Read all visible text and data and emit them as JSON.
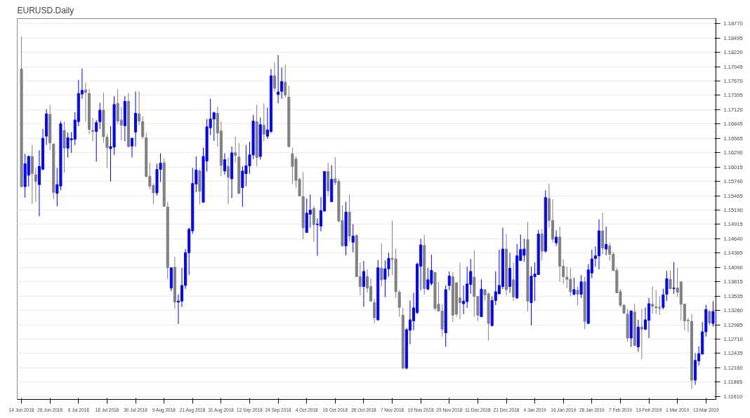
{
  "chart_data": {
    "type": "candlestick",
    "title": "EURUSD.Daily",
    "categories": [
      "14 Jun 2018",
      null,
      null,
      null,
      null,
      null,
      null,
      null,
      "26 Jun 2018",
      null,
      null,
      null,
      null,
      null,
      null,
      null,
      "6 Jul 2018",
      null,
      null,
      null,
      null,
      null,
      null,
      null,
      "18 Jul 2018",
      null,
      null,
      null,
      null,
      null,
      null,
      null,
      "30 Jul 2018",
      null,
      null,
      null,
      null,
      null,
      null,
      null,
      "9 Aug 2018",
      null,
      null,
      null,
      null,
      null,
      null,
      null,
      "21 Aug 2018",
      null,
      null,
      null,
      null,
      null,
      null,
      null,
      "31 Aug 2018",
      null,
      null,
      null,
      null,
      null,
      null,
      null,
      "12 Sep 2018",
      null,
      null,
      null,
      null,
      null,
      null,
      null,
      "24 Sep 2018",
      null,
      null,
      null,
      null,
      null,
      null,
      null,
      "4 Oct 2018",
      null,
      null,
      null,
      null,
      null,
      null,
      null,
      "16 Oct 2018",
      null,
      null,
      null,
      null,
      null,
      null,
      null,
      "26 Oct 2018",
      null,
      null,
      null,
      null,
      null,
      null,
      null,
      "7 Nov 2018",
      null,
      null,
      null,
      null,
      null,
      null,
      null,
      "19 Nov 2018",
      null,
      null,
      null,
      null,
      null,
      null,
      null,
      "29 Nov 2018",
      null,
      null,
      null,
      null,
      null,
      null,
      null,
      "11 Dec 2018",
      null,
      null,
      null,
      null,
      null,
      null,
      null,
      "21 Dec 2018",
      null,
      null,
      null,
      null,
      null,
      null,
      null,
      "4 Jan 2019",
      null,
      null,
      null,
      null,
      null,
      null,
      null,
      "16 Jan 2019",
      null,
      null,
      null,
      null,
      null,
      null,
      null,
      "28 Jan 2019",
      null,
      null,
      null,
      null,
      null,
      null,
      null,
      "7 Feb 2019",
      null,
      null,
      null,
      null,
      null,
      null,
      null,
      "19 Feb 2019",
      null,
      null,
      null,
      null,
      null,
      null,
      null,
      "1 Mar 2019",
      null,
      null,
      null,
      null,
      null,
      null,
      null,
      "13 Mar 2019",
      null,
      null
    ],
    "ohlc": [
      [
        1.179,
        1.1853,
        1.1562,
        1.1564
      ],
      [
        1.1564,
        1.1627,
        1.1543,
        1.1608
      ],
      [
        1.1586,
        1.1624,
        1.1564,
        1.1622
      ],
      [
        1.1622,
        1.1644,
        1.1531,
        1.1589
      ],
      [
        1.1587,
        1.16,
        1.1535,
        1.1574
      ],
      [
        1.1568,
        1.1634,
        1.1507,
        1.1603
      ],
      [
        1.1597,
        1.1675,
        1.1597,
        1.1657
      ],
      [
        1.1661,
        1.1713,
        1.1644,
        1.1704
      ],
      [
        1.1703,
        1.1721,
        1.1634,
        1.1648
      ],
      [
        1.1646,
        1.1646,
        1.154,
        1.1553
      ],
      [
        1.1551,
        1.16,
        1.1526,
        1.1568
      ],
      [
        1.1565,
        1.169,
        1.1557,
        1.1685
      ],
      [
        1.1672,
        1.1689,
        1.1591,
        1.1638
      ],
      [
        1.1638,
        1.1668,
        1.162,
        1.1658
      ],
      [
        1.1654,
        1.1669,
        1.1629,
        1.1656
      ],
      [
        1.1655,
        1.1707,
        1.1644,
        1.1692
      ],
      [
        1.1689,
        1.1769,
        1.168,
        1.1743
      ],
      [
        1.1742,
        1.1791,
        1.1733,
        1.1749
      ],
      [
        1.175,
        1.1764,
        1.1689,
        1.1745
      ],
      [
        1.1743,
        1.1752,
        1.1665,
        1.1674
      ],
      [
        1.1672,
        1.1696,
        1.1651,
        1.167
      ],
      [
        1.167,
        1.1692,
        1.1612,
        1.1687
      ],
      [
        1.1689,
        1.1725,
        1.1675,
        1.1711
      ],
      [
        1.1711,
        1.1745,
        1.1648,
        1.166
      ],
      [
        1.1659,
        1.1665,
        1.16,
        1.1639
      ],
      [
        1.1637,
        1.168,
        1.1574,
        1.1641
      ],
      [
        1.164,
        1.1738,
        1.1625,
        1.1722
      ],
      [
        1.1724,
        1.1752,
        1.1684,
        1.169
      ],
      [
        1.1692,
        1.1717,
        1.1653,
        1.1682
      ],
      [
        1.1681,
        1.1738,
        1.1651,
        1.1728
      ],
      [
        1.1728,
        1.1744,
        1.1639,
        1.1641
      ],
      [
        1.1642,
        1.1658,
        1.162,
        1.1657
      ],
      [
        1.1669,
        1.1747,
        1.1641,
        1.1705
      ],
      [
        1.1704,
        1.1747,
        1.1682,
        1.169
      ],
      [
        1.1689,
        1.1699,
        1.1656,
        1.166
      ],
      [
        1.1658,
        1.1668,
        1.1581,
        1.1584
      ],
      [
        1.1584,
        1.161,
        1.1559,
        1.1565
      ],
      [
        1.1566,
        1.157,
        1.153,
        1.1552
      ],
      [
        1.1552,
        1.1608,
        1.1547,
        1.1597
      ],
      [
        1.1597,
        1.1628,
        1.1573,
        1.1609
      ],
      [
        1.161,
        1.1618,
        1.1526,
        1.1526
      ],
      [
        1.1525,
        1.1535,
        1.1386,
        1.1408
      ],
      [
        1.1369,
        1.1408,
        1.1363,
        1.1408
      ],
      [
        1.1409,
        1.1429,
        1.1329,
        1.1342
      ],
      [
        1.1342,
        1.1357,
        1.13,
        1.1344
      ],
      [
        1.1344,
        1.1408,
        1.1333,
        1.1374
      ],
      [
        1.1374,
        1.1444,
        1.1367,
        1.1437
      ],
      [
        1.1437,
        1.1485,
        1.1394,
        1.1482
      ],
      [
        1.1479,
        1.16,
        1.1473,
        1.157
      ],
      [
        1.1569,
        1.1622,
        1.1553,
        1.1596
      ],
      [
        1.1594,
        1.1598,
        1.153,
        1.1555
      ],
      [
        1.1534,
        1.1639,
        1.1534,
        1.1622
      ],
      [
        1.1613,
        1.1694,
        1.1593,
        1.1679
      ],
      [
        1.1677,
        1.1733,
        1.1663,
        1.1694
      ],
      [
        1.1694,
        1.1708,
        1.1652,
        1.1706
      ],
      [
        1.1705,
        1.1718,
        1.1641,
        1.1667
      ],
      [
        1.1671,
        1.1689,
        1.1584,
        1.1605
      ],
      [
        1.1594,
        1.1628,
        1.1587,
        1.1616
      ],
      [
        1.1603,
        1.162,
        1.153,
        1.1582
      ],
      [
        1.1579,
        1.1641,
        1.1542,
        1.1629
      ],
      [
        1.1629,
        1.166,
        1.161,
        1.1624
      ],
      [
        1.1621,
        1.1648,
        1.155,
        1.1551
      ],
      [
        1.1562,
        1.1603,
        1.1525,
        1.1594
      ],
      [
        1.1589,
        1.1644,
        1.1565,
        1.1604
      ],
      [
        1.1604,
        1.165,
        1.1589,
        1.1625
      ],
      [
        1.1625,
        1.1702,
        1.1617,
        1.169
      ],
      [
        1.1689,
        1.1721,
        1.1603,
        1.162
      ],
      [
        1.1622,
        1.1697,
        1.1616,
        1.1683
      ],
      [
        1.1682,
        1.1724,
        1.1651,
        1.1665
      ],
      [
        1.1661,
        1.1716,
        1.1656,
        1.1673
      ],
      [
        1.167,
        1.179,
        1.1667,
        1.1777
      ],
      [
        1.1777,
        1.1803,
        1.1747,
        1.1753
      ],
      [
        1.1741,
        1.1817,
        1.1724,
        1.1746
      ],
      [
        1.1747,
        1.1793,
        1.1733,
        1.1766
      ],
      [
        1.1765,
        1.1799,
        1.1735,
        1.174
      ],
      [
        1.1736,
        1.1758,
        1.1639,
        1.1641
      ],
      [
        1.1627,
        1.1639,
        1.1569,
        1.1603
      ],
      [
        1.1617,
        1.1622,
        1.1562,
        1.1576
      ],
      [
        1.1578,
        1.1581,
        1.1545,
        1.1546
      ],
      [
        1.1545,
        1.1592,
        1.1463,
        1.1485
      ],
      [
        1.1476,
        1.1541,
        1.1475,
        1.1513
      ],
      [
        1.1511,
        1.1549,
        1.1485,
        1.1519
      ],
      [
        1.1522,
        1.1527,
        1.1458,
        1.1491
      ],
      [
        1.1491,
        1.1503,
        1.1431,
        1.1492
      ],
      [
        1.1488,
        1.1544,
        1.1478,
        1.1518
      ],
      [
        1.1517,
        1.1594,
        1.1516,
        1.1593
      ],
      [
        1.1593,
        1.161,
        1.1546,
        1.1556
      ],
      [
        1.1535,
        1.1605,
        1.1534,
        1.1578
      ],
      [
        1.1579,
        1.1621,
        1.1567,
        1.1572
      ],
      [
        1.1574,
        1.1579,
        1.1495,
        1.1498
      ],
      [
        1.1499,
        1.1528,
        1.1449,
        1.145
      ],
      [
        1.145,
        1.1535,
        1.1432,
        1.1515
      ],
      [
        1.1515,
        1.1549,
        1.1458,
        1.1469
      ],
      [
        1.1457,
        1.1492,
        1.1438,
        1.1469
      ],
      [
        1.147,
        1.1473,
        1.1391,
        1.1391
      ],
      [
        1.1391,
        1.1418,
        1.1355,
        1.1372
      ],
      [
        1.1372,
        1.1421,
        1.1333,
        1.1401
      ],
      [
        1.1391,
        1.1405,
        1.136,
        1.1369
      ],
      [
        1.1372,
        1.1388,
        1.1344,
        1.1344
      ],
      [
        1.1341,
        1.1348,
        1.1301,
        1.1312
      ],
      [
        1.1308,
        1.1423,
        1.1306,
        1.1408
      ],
      [
        1.1407,
        1.1455,
        1.1372,
        1.1385
      ],
      [
        1.1386,
        1.1422,
        1.1352,
        1.1406
      ],
      [
        1.1406,
        1.1437,
        1.1391,
        1.1426
      ],
      [
        1.1426,
        1.1499,
        1.1394,
        1.1424
      ],
      [
        1.1425,
        1.1445,
        1.135,
        1.1362
      ],
      [
        1.1361,
        1.1365,
        1.1314,
        1.1332
      ],
      [
        1.1317,
        1.1331,
        1.1213,
        1.1215
      ],
      [
        1.1215,
        1.1292,
        1.1213,
        1.1289
      ],
      [
        1.1288,
        1.1345,
        1.1261,
        1.1308
      ],
      [
        1.1306,
        1.136,
        1.1288,
        1.1331
      ],
      [
        1.1322,
        1.1418,
        1.1319,
        1.1415
      ],
      [
        1.1411,
        1.1464,
        1.1365,
        1.1452
      ],
      [
        1.1451,
        1.1471,
        1.1357,
        1.1368
      ],
      [
        1.1367,
        1.1408,
        1.1365,
        1.1385
      ],
      [
        1.1378,
        1.1433,
        1.1374,
        1.1403
      ],
      [
        1.1399,
        1.14,
        1.1326,
        1.133
      ],
      [
        1.1338,
        1.1381,
        1.1324,
        1.1325
      ],
      [
        1.1325,
        1.1338,
        1.1276,
        1.129
      ],
      [
        1.1283,
        1.1374,
        1.1256,
        1.1366
      ],
      [
        1.1374,
        1.1401,
        1.1365,
        1.1392
      ],
      [
        1.1391,
        1.14,
        1.1304,
        1.1317
      ],
      [
        1.1379,
        1.1381,
        1.1314,
        1.1319
      ],
      [
        1.135,
        1.1418,
        1.1309,
        1.1341
      ],
      [
        1.1339,
        1.1374,
        1.1319,
        1.1344
      ],
      [
        1.1343,
        1.141,
        1.1331,
        1.1377
      ],
      [
        1.1376,
        1.1425,
        1.1358,
        1.1401
      ],
      [
        1.139,
        1.1442,
        1.1314,
        1.1353
      ],
      [
        1.1353,
        1.1353,
        1.1305,
        1.1317
      ],
      [
        1.1314,
        1.1386,
        1.1314,
        1.1367
      ],
      [
        1.1366,
        1.1367,
        1.1345,
        1.1356
      ],
      [
        1.1358,
        1.136,
        1.1268,
        1.1301
      ],
      [
        1.1297,
        1.1353,
        1.1295,
        1.1345
      ],
      [
        1.1345,
        1.1401,
        1.1336,
        1.1362
      ],
      [
        1.1358,
        1.1443,
        1.1357,
        1.1374
      ],
      [
        1.1372,
        1.1485,
        1.1367,
        1.1444
      ],
      [
        1.1444,
        1.1473,
        1.1355,
        1.1366
      ],
      [
        1.1372,
        1.1437,
        1.136,
        1.1407
      ],
      [
        1.1385,
        1.1418,
        1.1344,
        1.1352
      ],
      [
        1.135,
        1.1454,
        1.1348,
        1.1431
      ],
      [
        1.1422,
        1.1472,
        1.1422,
        1.1443
      ],
      [
        1.1432,
        1.1464,
        1.142,
        1.1444
      ],
      [
        1.1462,
        1.1496,
        1.1324,
        1.1344
      ],
      [
        1.1341,
        1.141,
        1.1297,
        1.1392
      ],
      [
        1.1391,
        1.1418,
        1.1344,
        1.1396
      ],
      [
        1.1395,
        1.1481,
        1.1394,
        1.1473
      ],
      [
        1.1473,
        1.1483,
        1.1422,
        1.144
      ],
      [
        1.144,
        1.1557,
        1.1437,
        1.1543
      ],
      [
        1.1541,
        1.157,
        1.1485,
        1.1499
      ],
      [
        1.1499,
        1.154,
        1.1456,
        1.1463
      ],
      [
        1.1456,
        1.148,
        1.145,
        1.1467
      ],
      [
        1.1467,
        1.1487,
        1.1381,
        1.1411
      ],
      [
        1.1411,
        1.1424,
        1.1377,
        1.1391
      ],
      [
        1.139,
        1.141,
        1.1369,
        1.1386
      ],
      [
        1.1386,
        1.1408,
        1.1353,
        1.1362
      ],
      [
        1.1357,
        1.1389,
        1.1355,
        1.1366
      ],
      [
        1.1365,
        1.1372,
        1.1336,
        1.1357
      ],
      [
        1.1357,
        1.1394,
        1.135,
        1.1381
      ],
      [
        1.1381,
        1.1391,
        1.129,
        1.1305
      ],
      [
        1.1301,
        1.1415,
        1.13,
        1.1404
      ],
      [
        1.1398,
        1.1443,
        1.1388,
        1.1425
      ],
      [
        1.1426,
        1.1449,
        1.141,
        1.1431
      ],
      [
        1.1431,
        1.1501,
        1.1405,
        1.1479
      ],
      [
        1.1479,
        1.1514,
        1.1434,
        1.1446
      ],
      [
        1.1444,
        1.1487,
        1.1432,
        1.1453
      ],
      [
        1.145,
        1.1456,
        1.1422,
        1.1434
      ],
      [
        1.1434,
        1.1439,
        1.1401,
        1.1403
      ],
      [
        1.1403,
        1.1408,
        1.136,
        1.136
      ],
      [
        1.1362,
        1.1367,
        1.1333,
        1.1336
      ],
      [
        1.1336,
        1.1338,
        1.1319,
        1.1321
      ],
      [
        1.1319,
        1.1329,
        1.1266,
        1.1273
      ],
      [
        1.1273,
        1.1326,
        1.1256,
        1.1325
      ],
      [
        1.1323,
        1.1339,
        1.1257,
        1.1259
      ],
      [
        1.1256,
        1.1308,
        1.1247,
        1.1294
      ],
      [
        1.1294,
        1.1329,
        1.1232,
        1.129
      ],
      [
        1.129,
        1.1332,
        1.1288,
        1.1308
      ],
      [
        1.1307,
        1.135,
        1.1273,
        1.1339
      ],
      [
        1.1338,
        1.1372,
        1.132,
        1.1334
      ],
      [
        1.1333,
        1.1365,
        1.1319,
        1.1331
      ],
      [
        1.1332,
        1.1353,
        1.1317,
        1.133
      ],
      [
        1.1332,
        1.1368,
        1.1328,
        1.1356
      ],
      [
        1.1357,
        1.1402,
        1.1344,
        1.1387
      ],
      [
        1.1386,
        1.1403,
        1.1367,
        1.1368
      ],
      [
        1.1368,
        1.1419,
        1.1358,
        1.1369
      ],
      [
        1.1369,
        1.1408,
        1.1352,
        1.1361
      ],
      [
        1.1381,
        1.1381,
        1.1307,
        1.1338
      ],
      [
        1.1338,
        1.1339,
        1.1288,
        1.1306
      ],
      [
        1.1307,
        1.1312,
        1.1284,
        1.1306
      ],
      [
        1.1305,
        1.1319,
        1.1175,
        1.1192
      ],
      [
        1.1192,
        1.1244,
        1.1183,
        1.123
      ],
      [
        1.1229,
        1.1257,
        1.122,
        1.1243
      ],
      [
        1.1242,
        1.1304,
        1.1242,
        1.1285
      ],
      [
        1.1285,
        1.1337,
        1.1276,
        1.1328
      ],
      [
        1.1324,
        1.1326,
        1.1297,
        1.1302
      ],
      [
        1.1301,
        1.1344,
        1.1295,
        1.1324
      ]
    ],
    "colors": [
      "#808080",
      "#0000ff",
      "#0000ff",
      "#808080",
      "#808080",
      "#0000ff",
      "#0000ff",
      "#0000ff",
      "#808080",
      "#808080",
      "#0000ff",
      "#0000ff",
      "#808080",
      "#0000ff",
      "#0000ff",
      "#0000ff",
      "#0000ff",
      "#0000ff",
      "#808080",
      "#808080",
      "#808080",
      "#0000ff",
      "#0000ff",
      "#808080",
      "#808080",
      "#0000ff",
      "#0000ff",
      "#808080",
      "#808080",
      "#0000ff",
      "#808080",
      "#0000ff",
      "#0000ff",
      "#808080",
      "#808080",
      "#808080",
      "#808080",
      "#808080",
      "#0000ff",
      "#0000ff",
      "#808080",
      "#808080",
      "#0000ff",
      "#808080",
      "#0000ff",
      "#0000ff",
      "#0000ff",
      "#0000ff",
      "#0000ff",
      "#0000ff",
      "#808080",
      "#0000ff",
      "#0000ff",
      "#0000ff",
      "#0000ff",
      "#808080",
      "#808080",
      "#0000ff",
      "#808080",
      "#0000ff",
      "#808080",
      "#808080",
      "#0000ff",
      "#0000ff",
      "#0000ff",
      "#0000ff",
      "#808080",
      "#0000ff",
      "#808080",
      "#0000ff",
      "#0000ff",
      "#808080",
      "#0000ff",
      "#0000ff",
      "#808080",
      "#808080",
      "#808080",
      "#808080",
      "#808080",
      "#808080",
      "#0000ff",
      "#0000ff",
      "#808080",
      "#0000ff",
      "#0000ff",
      "#0000ff",
      "#808080",
      "#0000ff",
      "#808080",
      "#808080",
      "#808080",
      "#0000ff",
      "#808080",
      "#0000ff",
      "#808080",
      "#808080",
      "#0000ff",
      "#808080",
      "#808080",
      "#808080",
      "#0000ff",
      "#808080",
      "#0000ff",
      "#0000ff",
      "#808080",
      "#808080",
      "#808080",
      "#808080",
      "#0000ff",
      "#0000ff",
      "#0000ff",
      "#0000ff",
      "#0000ff",
      "#808080",
      "#0000ff",
      "#0000ff",
      "#808080",
      "#808080",
      "#808080",
      "#0000ff",
      "#0000ff",
      "#808080",
      "#808080",
      "#808080",
      "#0000ff",
      "#0000ff",
      "#0000ff",
      "#808080",
      "#808080",
      "#0000ff",
      "#808080",
      "#808080",
      "#0000ff",
      "#0000ff",
      "#0000ff",
      "#0000ff",
      "#808080",
      "#0000ff",
      "#808080",
      "#0000ff",
      "#0000ff",
      "#0000ff",
      "#808080",
      "#0000ff",
      "#0000ff",
      "#0000ff",
      "#808080",
      "#0000ff",
      "#808080",
      "#808080",
      "#0000ff",
      "#808080",
      "#808080",
      "#808080",
      "#808080",
      "#0000ff",
      "#808080",
      "#0000ff",
      "#808080",
      "#0000ff",
      "#0000ff",
      "#0000ff",
      "#0000ff",
      "#808080",
      "#0000ff",
      "#808080",
      "#808080",
      "#808080",
      "#808080",
      "#808080",
      "#808080",
      "#0000ff",
      "#808080",
      "#0000ff",
      "#808080",
      "#0000ff",
      "#0000ff",
      "#808080",
      "#808080",
      "#808080",
      "#0000ff",
      "#0000ff",
      "#808080",
      "#0000ff",
      "#808080",
      "#808080",
      "#808080",
      "#808080",
      "#808080",
      "#0000ff",
      "#0000ff",
      "#0000ff",
      "#0000ff",
      "#808080",
      "#0000ff"
    ],
    "ylim": [
      1.1155,
      1.1887
    ],
    "yticks": [
      {
        "value": 1.1877,
        "label": "1.18770"
      },
      {
        "value": 1.18495,
        "label": "1.18495"
      },
      {
        "value": 1.1822,
        "label": "1.18220"
      },
      {
        "value": 1.17945,
        "label": "1.17945"
      },
      {
        "value": 1.1767,
        "label": "1.17670"
      },
      {
        "value": 1.17395,
        "label": "1.17395"
      },
      {
        "value": 1.1712,
        "label": "1.17120"
      },
      {
        "value": 1.16845,
        "label": "1.16845"
      },
      {
        "value": 1.16565,
        "label": "1.16565"
      },
      {
        "value": 1.1629,
        "label": "1.16290"
      },
      {
        "value": 1.16015,
        "label": "1.16015"
      },
      {
        "value": 1.1574,
        "label": "1.15740"
      },
      {
        "value": 1.15465,
        "label": "1.15465"
      },
      {
        "value": 1.1519,
        "label": "1.15190"
      },
      {
        "value": 1.14915,
        "label": "1.14915"
      },
      {
        "value": 1.1464,
        "label": "1.14640"
      },
      {
        "value": 1.14365,
        "label": "1.14365"
      },
      {
        "value": 1.1409,
        "label": "1.14090"
      },
      {
        "value": 1.13815,
        "label": "1.13815"
      },
      {
        "value": 1.13535,
        "label": "1.13535"
      },
      {
        "value": 1.1326,
        "label": "1.13260"
      },
      {
        "value": 1.12985,
        "label": "1.12985"
      },
      {
        "value": 1.1271,
        "label": "1.12710"
      },
      {
        "value": 1.12435,
        "label": "1.12435"
      },
      {
        "value": 1.1216,
        "label": "1.12160"
      },
      {
        "value": 1.11885,
        "label": "1.11885"
      },
      {
        "value": 1.1161,
        "label": "1.11610"
      }
    ],
    "grid": "y"
  }
}
